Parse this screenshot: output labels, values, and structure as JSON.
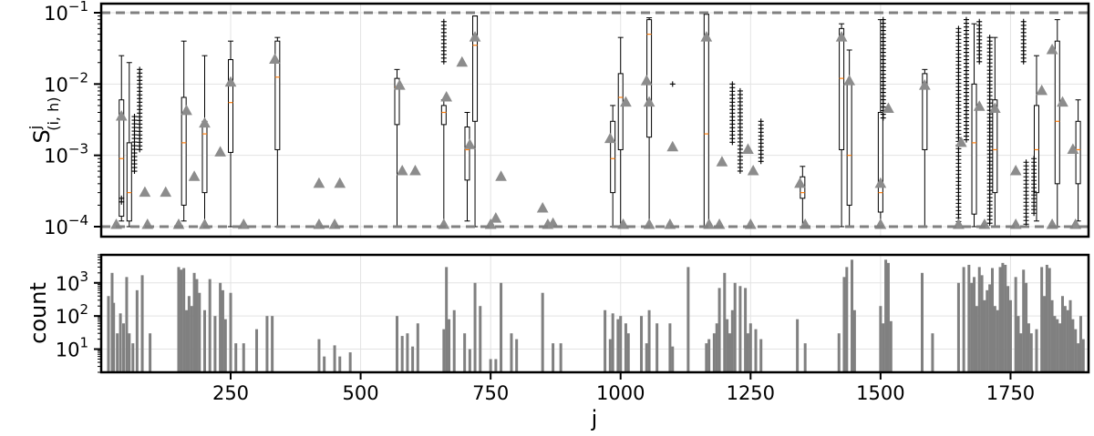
{
  "chart_data": [
    {
      "type": "box",
      "panel": "top",
      "ylabel_base": "S",
      "ylabel_sup": "j",
      "ylabel_sub": "(i, h)",
      "yscale": "log",
      "ylim": [
        0.0001,
        0.1
      ],
      "xlim": [
        1,
        1900
      ],
      "yticks": [
        {
          "value": 0.0001,
          "mantissa": "10",
          "exp": "−4"
        },
        {
          "value": 0.001,
          "mantissa": "10",
          "exp": "−3"
        },
        {
          "value": 0.01,
          "mantissa": "10",
          "exp": "−2"
        },
        {
          "value": 0.1,
          "mantissa": "10",
          "exp": "−1"
        }
      ],
      "reference_lines": [
        0.0001,
        0.1
      ],
      "grid": true,
      "boxes": [
        {
          "x": 40,
          "q1": 0.00014,
          "med": 0.0009,
          "q3": 0.006,
          "lo": 0.00012,
          "hi": 0.025
        },
        {
          "x": 55,
          "q1": 0.00012,
          "med": 0.0003,
          "q3": 0.0015,
          "lo": 0.0001,
          "hi": 0.02
        },
        {
          "x": 160,
          "q1": 0.0002,
          "med": 0.0015,
          "q3": 0.0065,
          "lo": 0.00012,
          "hi": 0.04
        },
        {
          "x": 200,
          "q1": 0.0003,
          "med": 0.002,
          "q3": 0.003,
          "lo": 0.0001,
          "hi": 0.025
        },
        {
          "x": 250,
          "q1": 0.0011,
          "med": 0.0055,
          "q3": 0.022,
          "lo": 0.0001,
          "hi": 0.04
        },
        {
          "x": 340,
          "q1": 0.0012,
          "med": 0.0125,
          "q3": 0.04,
          "lo": 0.0001,
          "hi": 0.045
        },
        {
          "x": 570,
          "q1": 0.0027,
          "med": 0.009,
          "q3": 0.012,
          "lo": 0.0001,
          "hi": 0.016
        },
        {
          "x": 660,
          "q1": 0.0027,
          "med": 0.004,
          "q3": 0.005,
          "lo": 0.0001,
          "hi": 0.006
        },
        {
          "x": 705,
          "q1": 0.00045,
          "med": 0.0012,
          "q3": 0.0025,
          "lo": 0.00012,
          "hi": 0.004
        },
        {
          "x": 720,
          "q1": 0.003,
          "med": 0.035,
          "q3": 0.09,
          "lo": 0.0001,
          "hi": 0.09
        },
        {
          "x": 985,
          "q1": 0.0003,
          "med": 0.0009,
          "q3": 0.003,
          "lo": 0.0001,
          "hi": 0.005
        },
        {
          "x": 1000,
          "q1": 0.0012,
          "med": 0.0065,
          "q3": 0.014,
          "lo": 0.0001,
          "hi": 0.045
        },
        {
          "x": 1055,
          "q1": 0.0018,
          "med": 0.05,
          "q3": 0.08,
          "lo": 0.0001,
          "hi": 0.085
        },
        {
          "x": 1165,
          "q1": 0.0001,
          "med": 0.002,
          "q3": 0.095,
          "lo": 0.0001,
          "hi": 0.095
        },
        {
          "x": 1350,
          "q1": 0.00025,
          "med": 0.0003,
          "q3": 0.0005,
          "lo": 0.0001,
          "hi": 0.0007
        },
        {
          "x": 1425,
          "q1": 0.0012,
          "med": 0.012,
          "q3": 0.06,
          "lo": 0.0001,
          "hi": 0.07
        },
        {
          "x": 1440,
          "q1": 0.0002,
          "med": 0.001,
          "q3": 0.01,
          "lo": 0.0001,
          "hi": 0.03
        },
        {
          "x": 1500,
          "q1": 0.00016,
          "med": 0.0003,
          "q3": 0.004,
          "lo": 0.0001,
          "hi": 0.08
        },
        {
          "x": 1585,
          "q1": 0.0012,
          "med": 0.01,
          "q3": 0.014,
          "lo": 0.0001,
          "hi": 0.016
        },
        {
          "x": 1680,
          "q1": 0.00015,
          "med": 0.0015,
          "q3": 0.01,
          "lo": 0.0001,
          "hi": 0.07
        },
        {
          "x": 1720,
          "q1": 0.0003,
          "med": 0.0012,
          "q3": 0.006,
          "lo": 0.0001,
          "hi": 0.045
        },
        {
          "x": 1800,
          "q1": 0.0003,
          "med": 0.0012,
          "q3": 0.005,
          "lo": 0.00012,
          "hi": 0.025
        },
        {
          "x": 1840,
          "q1": 0.0004,
          "med": 0.003,
          "q3": 0.04,
          "lo": 0.0001,
          "hi": 0.08
        },
        {
          "x": 1880,
          "q1": 0.0004,
          "med": 0.0012,
          "q3": 0.003,
          "lo": 0.00012,
          "hi": 0.006
        }
      ],
      "means": [
        {
          "x": 40,
          "y": 0.0035
        },
        {
          "x": 85,
          "y": 0.0003
        },
        {
          "x": 125,
          "y": 0.0003
        },
        {
          "x": 165,
          "y": 0.0042
        },
        {
          "x": 180,
          "y": 0.0005
        },
        {
          "x": 200,
          "y": 0.0028
        },
        {
          "x": 230,
          "y": 0.0011
        },
        {
          "x": 250,
          "y": 0.0105
        },
        {
          "x": 335,
          "y": 0.022
        },
        {
          "x": 420,
          "y": 0.0004
        },
        {
          "x": 460,
          "y": 0.0004
        },
        {
          "x": 575,
          "y": 0.0095
        },
        {
          "x": 580,
          "y": 0.0006
        },
        {
          "x": 605,
          "y": 0.0006
        },
        {
          "x": 665,
          "y": 0.0065
        },
        {
          "x": 695,
          "y": 0.02
        },
        {
          "x": 710,
          "y": 0.0014
        },
        {
          "x": 720,
          "y": 0.045
        },
        {
          "x": 760,
          "y": 0.00013
        },
        {
          "x": 770,
          "y": 0.0005
        },
        {
          "x": 850,
          "y": 0.00018
        },
        {
          "x": 870,
          "y": 0.00011
        },
        {
          "x": 980,
          "y": 0.0017
        },
        {
          "x": 1010,
          "y": 0.0055
        },
        {
          "x": 1050,
          "y": 0.011
        },
        {
          "x": 1055,
          "y": 0.0055
        },
        {
          "x": 1100,
          "y": 0.0013
        },
        {
          "x": 1165,
          "y": 0.045
        },
        {
          "x": 1195,
          "y": 0.0008
        },
        {
          "x": 1245,
          "y": 0.0012
        },
        {
          "x": 1255,
          "y": 0.0006
        },
        {
          "x": 1345,
          "y": 0.0004
        },
        {
          "x": 1425,
          "y": 0.045
        },
        {
          "x": 1440,
          "y": 0.011
        },
        {
          "x": 1500,
          "y": 0.0004
        },
        {
          "x": 1515,
          "y": 0.0045
        },
        {
          "x": 1585,
          "y": 0.0095
        },
        {
          "x": 1655,
          "y": 0.0015
        },
        {
          "x": 1690,
          "y": 0.0048
        },
        {
          "x": 1720,
          "y": 0.0045
        },
        {
          "x": 1760,
          "y": 0.0006
        },
        {
          "x": 1810,
          "y": 0.008
        },
        {
          "x": 1830,
          "y": 0.03
        },
        {
          "x": 1850,
          "y": 0.0055
        },
        {
          "x": 1870,
          "y": 0.0012
        }
      ],
      "floor_means": [
        30,
        90,
        150,
        200,
        275,
        420,
        450,
        660,
        750,
        860,
        1005,
        1055,
        1095,
        1170,
        1190,
        1250,
        1355,
        1500,
        1650,
        1700,
        1760,
        1830,
        1875
      ],
      "outlier_columns": [
        {
          "x": 40,
          "from": 0.0002,
          "to": 0.00025
        },
        {
          "x": 65,
          "from": 0.0006,
          "to": 0.0035
        },
        {
          "x": 75,
          "from": 0.0012,
          "to": 0.016
        },
        {
          "x": 660,
          "from": 0.02,
          "to": 0.075
        },
        {
          "x": 1100,
          "from": 0.009,
          "to": 0.01
        },
        {
          "x": 1215,
          "from": 0.0015,
          "to": 0.01
        },
        {
          "x": 1230,
          "from": 0.0006,
          "to": 0.008
        },
        {
          "x": 1270,
          "from": 0.0008,
          "to": 0.003
        },
        {
          "x": 1505,
          "from": 0.003,
          "to": 0.08
        },
        {
          "x": 1650,
          "from": 0.0001,
          "to": 0.06
        },
        {
          "x": 1665,
          "from": 0.0015,
          "to": 0.08
        },
        {
          "x": 1690,
          "from": 0.02,
          "to": 0.075
        },
        {
          "x": 1710,
          "from": 0.0001,
          "to": 0.045
        },
        {
          "x": 1775,
          "from": 0.02,
          "to": 0.075
        },
        {
          "x": 1780,
          "from": 0.0001,
          "to": 0.0008
        },
        {
          "x": 1795,
          "from": 0.00015,
          "to": 0.0009
        }
      ]
    },
    {
      "type": "bar",
      "panel": "bottom",
      "ylabel": "count",
      "xlabel": "j",
      "yscale": "log",
      "ylim": [
        2,
        7000
      ],
      "xlim": [
        1,
        1900
      ],
      "xticks": [
        250,
        500,
        750,
        1000,
        1250,
        1500,
        1750
      ],
      "yticks": [
        {
          "value": 10,
          "mantissa": "10",
          "exp": "1"
        },
        {
          "value": 100,
          "mantissa": "10",
          "exp": "2"
        },
        {
          "value": 1000,
          "mantissa": "10",
          "exp": "3"
        }
      ],
      "grid": true,
      "color": "#808080",
      "bars": [
        [
          15,
          400
        ],
        [
          22,
          2000
        ],
        [
          25,
          250
        ],
        [
          32,
          30
        ],
        [
          38,
          120
        ],
        [
          44,
          60
        ],
        [
          50,
          1500
        ],
        [
          55,
          30
        ],
        [
          62,
          15
        ],
        [
          70,
          600
        ],
        [
          80,
          1700
        ],
        [
          95,
          30
        ],
        [
          150,
          3000
        ],
        [
          155,
          2500
        ],
        [
          160,
          2800
        ],
        [
          165,
          150
        ],
        [
          170,
          400
        ],
        [
          175,
          200
        ],
        [
          180,
          2000
        ],
        [
          185,
          1300
        ],
        [
          190,
          500
        ],
        [
          200,
          150
        ],
        [
          210,
          1300
        ],
        [
          220,
          100
        ],
        [
          230,
          1000
        ],
        [
          235,
          600
        ],
        [
          240,
          80
        ],
        [
          250,
          500
        ],
        [
          260,
          15
        ],
        [
          275,
          15
        ],
        [
          300,
          40
        ],
        [
          320,
          100
        ],
        [
          330,
          100
        ],
        [
          420,
          20
        ],
        [
          430,
          6
        ],
        [
          450,
          13
        ],
        [
          460,
          6
        ],
        [
          480,
          8
        ],
        [
          570,
          100
        ],
        [
          580,
          25
        ],
        [
          590,
          30
        ],
        [
          600,
          12
        ],
        [
          610,
          60
        ],
        [
          660,
          40
        ],
        [
          665,
          3000
        ],
        [
          670,
          80
        ],
        [
          680,
          150
        ],
        [
          700,
          30
        ],
        [
          710,
          10
        ],
        [
          720,
          1000
        ],
        [
          730,
          200
        ],
        [
          750,
          5
        ],
        [
          760,
          5
        ],
        [
          770,
          1000
        ],
        [
          790,
          30
        ],
        [
          800,
          20
        ],
        [
          850,
          500
        ],
        [
          870,
          15
        ],
        [
          885,
          15
        ],
        [
          970,
          150
        ],
        [
          980,
          20
        ],
        [
          985,
          120
        ],
        [
          995,
          80
        ],
        [
          1000,
          100
        ],
        [
          1010,
          60
        ],
        [
          1015,
          30
        ],
        [
          1040,
          100
        ],
        [
          1050,
          15
        ],
        [
          1055,
          150
        ],
        [
          1070,
          60
        ],
        [
          1095,
          60
        ],
        [
          1100,
          12
        ],
        [
          1130,
          3000
        ],
        [
          1165,
          15
        ],
        [
          1170,
          20
        ],
        [
          1180,
          30
        ],
        [
          1185,
          60
        ],
        [
          1190,
          700
        ],
        [
          1200,
          2000
        ],
        [
          1205,
          80
        ],
        [
          1210,
          30
        ],
        [
          1215,
          150
        ],
        [
          1220,
          1000
        ],
        [
          1230,
          800
        ],
        [
          1240,
          700
        ],
        [
          1245,
          30
        ],
        [
          1250,
          60
        ],
        [
          1260,
          40
        ],
        [
          1270,
          20
        ],
        [
          1340,
          80
        ],
        [
          1355,
          15
        ],
        [
          1420,
          30
        ],
        [
          1430,
          1500
        ],
        [
          1435,
          3000
        ],
        [
          1445,
          5000
        ],
        [
          1450,
          150
        ],
        [
          1500,
          200
        ],
        [
          1505,
          60
        ],
        [
          1510,
          5000
        ],
        [
          1515,
          4000
        ],
        [
          1520,
          70
        ],
        [
          1580,
          2000
        ],
        [
          1600,
          30
        ],
        [
          1650,
          1000
        ],
        [
          1660,
          3000
        ],
        [
          1670,
          3500
        ],
        [
          1675,
          1000
        ],
        [
          1680,
          1500
        ],
        [
          1685,
          200
        ],
        [
          1690,
          3000
        ],
        [
          1695,
          1700
        ],
        [
          1700,
          300
        ],
        [
          1705,
          600
        ],
        [
          1710,
          900
        ],
        [
          1715,
          2800
        ],
        [
          1720,
          200
        ],
        [
          1725,
          150
        ],
        [
          1730,
          3000
        ],
        [
          1735,
          4000
        ],
        [
          1740,
          3500
        ],
        [
          1745,
          800
        ],
        [
          1750,
          300
        ],
        [
          1760,
          1500
        ],
        [
          1765,
          100
        ],
        [
          1770,
          30
        ],
        [
          1775,
          2500
        ],
        [
          1780,
          1000
        ],
        [
          1785,
          60
        ],
        [
          1790,
          30
        ],
        [
          1800,
          40
        ],
        [
          1810,
          3000
        ],
        [
          1815,
          400
        ],
        [
          1820,
          3500
        ],
        [
          1825,
          2800
        ],
        [
          1830,
          300
        ],
        [
          1835,
          100
        ],
        [
          1840,
          80
        ],
        [
          1845,
          60
        ],
        [
          1850,
          400
        ],
        [
          1855,
          200
        ],
        [
          1860,
          150
        ],
        [
          1865,
          300
        ],
        [
          1870,
          80
        ],
        [
          1875,
          40
        ],
        [
          1880,
          15
        ],
        [
          1885,
          100
        ],
        [
          1890,
          20
        ]
      ]
    }
  ]
}
